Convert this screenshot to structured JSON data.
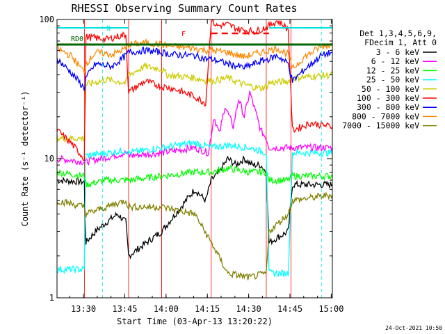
{
  "chart_data": {
    "type": "line",
    "title": "RHESSI Observing Summary Count Rates",
    "xlabel": "Start Time (03-Apr-13 13:20:22)",
    "ylabel": "Count Rate (s⁻¹ detector⁻¹)",
    "yscale": "log",
    "ylim": [
      1,
      100
    ],
    "xlim_minutes": [
      0,
      100
    ],
    "x_ticks": [
      "13:30",
      "13:45",
      "14:00",
      "14:15",
      "14:30",
      "14:45",
      "15:00"
    ],
    "x_tick_minutes": [
      9.6,
      24.6,
      39.6,
      54.6,
      69.6,
      84.6,
      99.6
    ],
    "y_ticks": [
      "1",
      "10",
      "100"
    ],
    "y_tick_values": [
      1,
      10,
      100
    ],
    "legend": {
      "position": "right",
      "header": [
        "Det 1,3,4,5,6,9,",
        "FDecim 1, Att 0"
      ]
    },
    "timestamp": "24-Oct-2021 10:50",
    "annotations": {
      "rd0": "RD0",
      "n": "N",
      "f": "F"
    },
    "night_intervals_minutes": [
      [
        0,
        10
      ],
      [
        26,
        38
      ],
      [
        38,
        56
      ],
      [
        76,
        85
      ]
    ],
    "series": [
      {
        "name": "3 - 6 keV",
        "color": "#000000",
        "points": [
          [
            0,
            7
          ],
          [
            9.9,
            6.8
          ],
          [
            10.5,
            2.5
          ],
          [
            14,
            3
          ],
          [
            18,
            3.5
          ],
          [
            22,
            4
          ],
          [
            25,
            3.5
          ],
          [
            26,
            2
          ],
          [
            38,
            3
          ],
          [
            50,
            6
          ],
          [
            54,
            5
          ],
          [
            56,
            7
          ],
          [
            59,
            8
          ],
          [
            62,
            10
          ],
          [
            65,
            9
          ],
          [
            68,
            10
          ],
          [
            71,
            9
          ],
          [
            74,
            9
          ],
          [
            76,
            8
          ],
          [
            77,
            2.5
          ],
          [
            84,
            3
          ],
          [
            85.5,
            6.5
          ],
          [
            100,
            6.5
          ]
        ]
      },
      {
        "name": "6 - 12 keV",
        "color": "#ff00ff",
        "points": [
          [
            0,
            10
          ],
          [
            9.9,
            9.5
          ],
          [
            10.5,
            9.5
          ],
          [
            18,
            10.2
          ],
          [
            25,
            11
          ],
          [
            26,
            10.5
          ],
          [
            38,
            11
          ],
          [
            50,
            12
          ],
          [
            55,
            11
          ],
          [
            57,
            20
          ],
          [
            59,
            15
          ],
          [
            61,
            24
          ],
          [
            64,
            17
          ],
          [
            66,
            27
          ],
          [
            68,
            20
          ],
          [
            70,
            30
          ],
          [
            72,
            22
          ],
          [
            74,
            16
          ],
          [
            76,
            14
          ],
          [
            77,
            12
          ],
          [
            84,
            12
          ],
          [
            85.5,
            12
          ],
          [
            100,
            12
          ]
        ]
      },
      {
        "name": "12 - 25 keV",
        "color": "#00ff00",
        "points": [
          [
            0,
            8
          ],
          [
            9.9,
            7.5
          ],
          [
            10.5,
            6.5
          ],
          [
            18,
            7
          ],
          [
            25,
            7
          ],
          [
            26,
            7
          ],
          [
            38,
            7.5
          ],
          [
            50,
            8
          ],
          [
            56,
            8
          ],
          [
            62,
            8.5
          ],
          [
            70,
            8
          ],
          [
            76,
            8
          ],
          [
            77,
            7
          ],
          [
            84,
            7
          ],
          [
            85.5,
            7.5
          ],
          [
            100,
            7.5
          ]
        ]
      },
      {
        "name": "25 - 50 keV",
        "color": "#00ffff",
        "points": [
          [
            0,
            1.6
          ],
          [
            9.9,
            1.6
          ],
          [
            10.5,
            10.5
          ],
          [
            18,
            11
          ],
          [
            25,
            11.5
          ],
          [
            26,
            11
          ],
          [
            38,
            12
          ],
          [
            50,
            13
          ],
          [
            56,
            12
          ],
          [
            62,
            12.5
          ],
          [
            70,
            12
          ],
          [
            76,
            11
          ],
          [
            77,
            1.5
          ],
          [
            84,
            1.5
          ],
          [
            85.5,
            11
          ],
          [
            100,
            11
          ]
        ]
      },
      {
        "name": "50 - 100 keV",
        "color": "#cccc00",
        "points": [
          [
            0,
            14
          ],
          [
            9.9,
            14
          ],
          [
            10.5,
            34
          ],
          [
            18,
            37
          ],
          [
            25,
            35
          ],
          [
            26,
            40
          ],
          [
            32,
            46
          ],
          [
            38,
            44
          ],
          [
            40,
            40
          ],
          [
            50,
            38
          ],
          [
            56,
            36
          ],
          [
            62,
            38
          ],
          [
            68,
            34
          ],
          [
            74,
            32
          ],
          [
            76,
            33
          ],
          [
            77,
            35
          ],
          [
            84,
            36
          ],
          [
            85.5,
            38
          ],
          [
            100,
            40
          ]
        ]
      },
      {
        "name": "100 - 300 keV",
        "color": "#ff0000",
        "points": [
          [
            0,
            16
          ],
          [
            5,
            13
          ],
          [
            9.9,
            10
          ],
          [
            10.5,
            75
          ],
          [
            18,
            72
          ],
          [
            25,
            78
          ],
          [
            26,
            30
          ],
          [
            32,
            36
          ],
          [
            38,
            33
          ],
          [
            42,
            32
          ],
          [
            50,
            28
          ],
          [
            54,
            25
          ],
          [
            56,
            100
          ],
          [
            58,
            90
          ],
          [
            62,
            92
          ],
          [
            66,
            85
          ],
          [
            72,
            82
          ],
          [
            76,
            88
          ],
          [
            77,
            90
          ],
          [
            80,
            98
          ],
          [
            84,
            85
          ],
          [
            85.5,
            16
          ],
          [
            92,
            18
          ],
          [
            100,
            17
          ]
        ]
      },
      {
        "name": "300 - 800 keV",
        "color": "#0000ff",
        "points": [
          [
            0,
            52
          ],
          [
            5,
            42
          ],
          [
            9.9,
            32
          ],
          [
            10.5,
            38
          ],
          [
            14,
            48
          ],
          [
            20,
            46
          ],
          [
            25,
            55
          ],
          [
            26,
            58
          ],
          [
            32,
            60
          ],
          [
            38,
            58
          ],
          [
            42,
            56
          ],
          [
            50,
            55
          ],
          [
            54,
            52
          ],
          [
            56,
            52
          ],
          [
            62,
            48
          ],
          [
            68,
            45
          ],
          [
            74,
            50
          ],
          [
            77,
            52
          ],
          [
            80,
            55
          ],
          [
            84,
            48
          ],
          [
            85.5,
            36
          ],
          [
            90,
            44
          ],
          [
            96,
            55
          ],
          [
            100,
            58
          ]
        ]
      },
      {
        "name": "800 - 7000 keV",
        "color": "#ff8800",
        "points": [
          [
            0,
            62
          ],
          [
            5,
            55
          ],
          [
            9.9,
            42
          ],
          [
            10.5,
            48
          ],
          [
            14,
            58
          ],
          [
            20,
            56
          ],
          [
            25,
            62
          ],
          [
            26,
            66
          ],
          [
            32,
            68
          ],
          [
            38,
            66
          ],
          [
            42,
            64
          ],
          [
            50,
            62
          ],
          [
            54,
            60
          ],
          [
            56,
            60
          ],
          [
            62,
            58
          ],
          [
            68,
            54
          ],
          [
            74,
            58
          ],
          [
            77,
            60
          ],
          [
            80,
            62
          ],
          [
            84,
            56
          ],
          [
            85.5,
            44
          ],
          [
            90,
            54
          ],
          [
            96,
            64
          ],
          [
            100,
            66
          ]
        ]
      },
      {
        "name": "7000 - 15000 keV",
        "color": "#808000",
        "points": [
          [
            0,
            5
          ],
          [
            9.9,
            4.5
          ],
          [
            10.5,
            4
          ],
          [
            18,
            4.5
          ],
          [
            25,
            5
          ],
          [
            26,
            4.5
          ],
          [
            38,
            4.5
          ],
          [
            50,
            4
          ],
          [
            56,
            2.5
          ],
          [
            62,
            1.5
          ],
          [
            70,
            1.4
          ],
          [
            76,
            1.5
          ],
          [
            77,
            3
          ],
          [
            84,
            4
          ],
          [
            85.5,
            5
          ],
          [
            100,
            5.5
          ]
        ]
      }
    ]
  }
}
